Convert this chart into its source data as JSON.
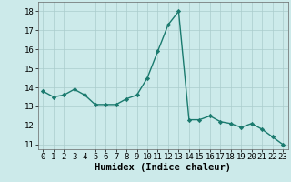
{
  "x": [
    0,
    1,
    2,
    3,
    4,
    5,
    6,
    7,
    8,
    9,
    10,
    11,
    12,
    13,
    14,
    15,
    16,
    17,
    18,
    19,
    20,
    21,
    22,
    23
  ],
  "y": [
    13.8,
    13.5,
    13.6,
    13.9,
    13.6,
    13.1,
    13.1,
    13.1,
    13.4,
    13.6,
    14.5,
    15.9,
    17.3,
    18.0,
    12.3,
    12.3,
    12.5,
    12.2,
    12.1,
    11.9,
    12.1,
    11.8,
    11.4,
    11.0
  ],
  "line_color": "#1a7a6e",
  "marker": "D",
  "marker_size": 2.2,
  "bg_color": "#cceaea",
  "grid_color": "#aacccc",
  "xlabel": "Humidex (Indice chaleur)",
  "xlim": [
    -0.5,
    23.5
  ],
  "ylim": [
    10.75,
    18.5
  ],
  "yticks": [
    11,
    12,
    13,
    14,
    15,
    16,
    17,
    18
  ],
  "xticks": [
    0,
    1,
    2,
    3,
    4,
    5,
    6,
    7,
    8,
    9,
    10,
    11,
    12,
    13,
    14,
    15,
    16,
    17,
    18,
    19,
    20,
    21,
    22,
    23
  ],
  "xlabel_fontsize": 7.5,
  "tick_fontsize": 6.5,
  "line_width": 1.0
}
